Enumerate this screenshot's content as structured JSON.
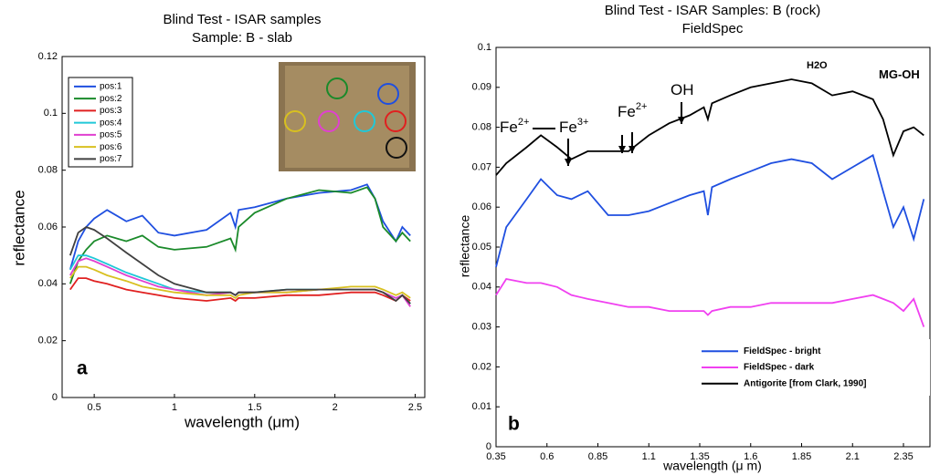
{
  "chart_data": [
    {
      "type": "line",
      "title": "Blind Test - ISAR samples",
      "subtitle": "Sample: B - slab",
      "x_label": "wavelength (μm)",
      "y_label": "reflectance",
      "panel_label": "a",
      "xlim": [
        0.3,
        2.56
      ],
      "ylim": [
        0,
        0.12
      ],
      "xticks": [
        0.5,
        1,
        1.5,
        2,
        2.5
      ],
      "yticks": [
        0,
        0.02,
        0.04,
        0.06,
        0.08,
        0.1,
        0.12
      ],
      "legend": "upper left",
      "x": [
        0.35,
        0.4,
        0.45,
        0.5,
        0.58,
        0.7,
        0.8,
        0.9,
        1.0,
        1.2,
        1.35,
        1.38,
        1.4,
        1.5,
        1.7,
        1.9,
        2.1,
        2.2,
        2.25,
        2.3,
        2.38,
        2.42,
        2.47
      ],
      "series": [
        {
          "name": "pos:1",
          "color": "#1f4fe0",
          "values": [
            0.045,
            0.055,
            0.06,
            0.063,
            0.066,
            0.062,
            0.064,
            0.058,
            0.057,
            0.059,
            0.065,
            0.06,
            0.066,
            0.067,
            0.07,
            0.072,
            0.073,
            0.075,
            0.07,
            0.062,
            0.055,
            0.06,
            0.057
          ]
        },
        {
          "name": "pos:2",
          "color": "#1a8a2a",
          "values": [
            0.04,
            0.048,
            0.052,
            0.055,
            0.057,
            0.055,
            0.057,
            0.053,
            0.052,
            0.053,
            0.056,
            0.052,
            0.06,
            0.065,
            0.07,
            0.073,
            0.072,
            0.074,
            0.07,
            0.06,
            0.055,
            0.058,
            0.055
          ]
        },
        {
          "name": "pos:3",
          "color": "#e02020",
          "values": [
            0.038,
            0.042,
            0.042,
            0.041,
            0.04,
            0.038,
            0.037,
            0.036,
            0.035,
            0.034,
            0.035,
            0.034,
            0.035,
            0.035,
            0.036,
            0.036,
            0.037,
            0.037,
            0.037,
            0.036,
            0.034,
            0.036,
            0.034
          ]
        },
        {
          "name": "pos:4",
          "color": "#20c8d8",
          "values": [
            0.045,
            0.05,
            0.05,
            0.049,
            0.047,
            0.044,
            0.042,
            0.04,
            0.038,
            0.037,
            0.037,
            0.036,
            0.037,
            0.037,
            0.038,
            0.038,
            0.038,
            0.038,
            0.038,
            0.037,
            0.035,
            0.036,
            0.033
          ]
        },
        {
          "name": "pos:5",
          "color": "#e040d0",
          "values": [
            0.043,
            0.048,
            0.049,
            0.048,
            0.046,
            0.043,
            0.041,
            0.039,
            0.038,
            0.036,
            0.037,
            0.036,
            0.037,
            0.037,
            0.037,
            0.038,
            0.038,
            0.038,
            0.038,
            0.037,
            0.035,
            0.036,
            0.032
          ]
        },
        {
          "name": "pos:6",
          "color": "#d8c020",
          "values": [
            0.042,
            0.046,
            0.046,
            0.045,
            0.043,
            0.041,
            0.039,
            0.038,
            0.037,
            0.036,
            0.036,
            0.035,
            0.036,
            0.037,
            0.037,
            0.038,
            0.039,
            0.039,
            0.039,
            0.038,
            0.036,
            0.037,
            0.035
          ]
        },
        {
          "name": "pos:7",
          "color": "#404040",
          "values": [
            0.05,
            0.058,
            0.06,
            0.059,
            0.056,
            0.051,
            0.047,
            0.043,
            0.04,
            0.037,
            0.037,
            0.036,
            0.037,
            0.037,
            0.038,
            0.038,
            0.038,
            0.038,
            0.038,
            0.037,
            0.034,
            0.036,
            0.033
          ]
        }
      ]
    },
    {
      "type": "line",
      "title": "Blind Test - ISAR Samples: B (rock)",
      "subtitle": "FieldSpec",
      "x_label": "wavelength (μ m)",
      "y_label": "reflectance",
      "panel_label": "b",
      "xlim": [
        0.35,
        2.48
      ],
      "ylim": [
        0,
        0.1
      ],
      "xticks": [
        0.35,
        0.6,
        0.85,
        1.1,
        1.35,
        1.6,
        1.85,
        2.1,
        2.35
      ],
      "yticks": [
        0,
        0.01,
        0.02,
        0.03,
        0.04,
        0.05,
        0.06,
        0.07,
        0.08,
        0.09,
        0.1
      ],
      "legend": "lower right",
      "annotations": [
        {
          "text": "Fe",
          "sup": "2+"
        },
        {
          "text": "Fe",
          "sup": "3+"
        },
        {
          "text": "Fe",
          "sup": "2+"
        },
        {
          "text": "OH"
        },
        {
          "text": "H2O"
        },
        {
          "text": "MG-OH"
        }
      ],
      "x": [
        0.35,
        0.4,
        0.5,
        0.57,
        0.65,
        0.72,
        0.8,
        0.9,
        1.0,
        1.1,
        1.2,
        1.3,
        1.37,
        1.39,
        1.41,
        1.5,
        1.6,
        1.7,
        1.8,
        1.9,
        2.0,
        2.1,
        2.2,
        2.25,
        2.3,
        2.35,
        2.4,
        2.45
      ],
      "series": [
        {
          "name": "FieldSpec - bright",
          "color": "#1f4fe0",
          "values": [
            0.045,
            0.055,
            0.062,
            0.067,
            0.063,
            0.062,
            0.064,
            0.058,
            0.058,
            0.059,
            0.061,
            0.063,
            0.064,
            0.058,
            0.065,
            0.067,
            0.069,
            0.071,
            0.072,
            0.071,
            0.067,
            0.07,
            0.073,
            0.064,
            0.055,
            0.06,
            0.052,
            0.062
          ]
        },
        {
          "name": "FieldSpec - dark",
          "color": "#f040f0",
          "values": [
            0.038,
            0.042,
            0.041,
            0.041,
            0.04,
            0.038,
            0.037,
            0.036,
            0.035,
            0.035,
            0.034,
            0.034,
            0.034,
            0.033,
            0.034,
            0.035,
            0.035,
            0.036,
            0.036,
            0.036,
            0.036,
            0.037,
            0.038,
            0.037,
            0.036,
            0.034,
            0.037,
            0.03
          ]
        },
        {
          "name": "Antigorite [from Clark, 1990]",
          "color": "#000000",
          "values": [
            0.068,
            0.071,
            0.075,
            0.078,
            0.075,
            0.072,
            0.074,
            0.074,
            0.074,
            0.078,
            0.081,
            0.083,
            0.085,
            0.082,
            0.086,
            0.088,
            0.09,
            0.091,
            0.092,
            0.091,
            0.088,
            0.089,
            0.087,
            0.082,
            0.073,
            0.079,
            0.08,
            0.078
          ]
        }
      ]
    }
  ]
}
